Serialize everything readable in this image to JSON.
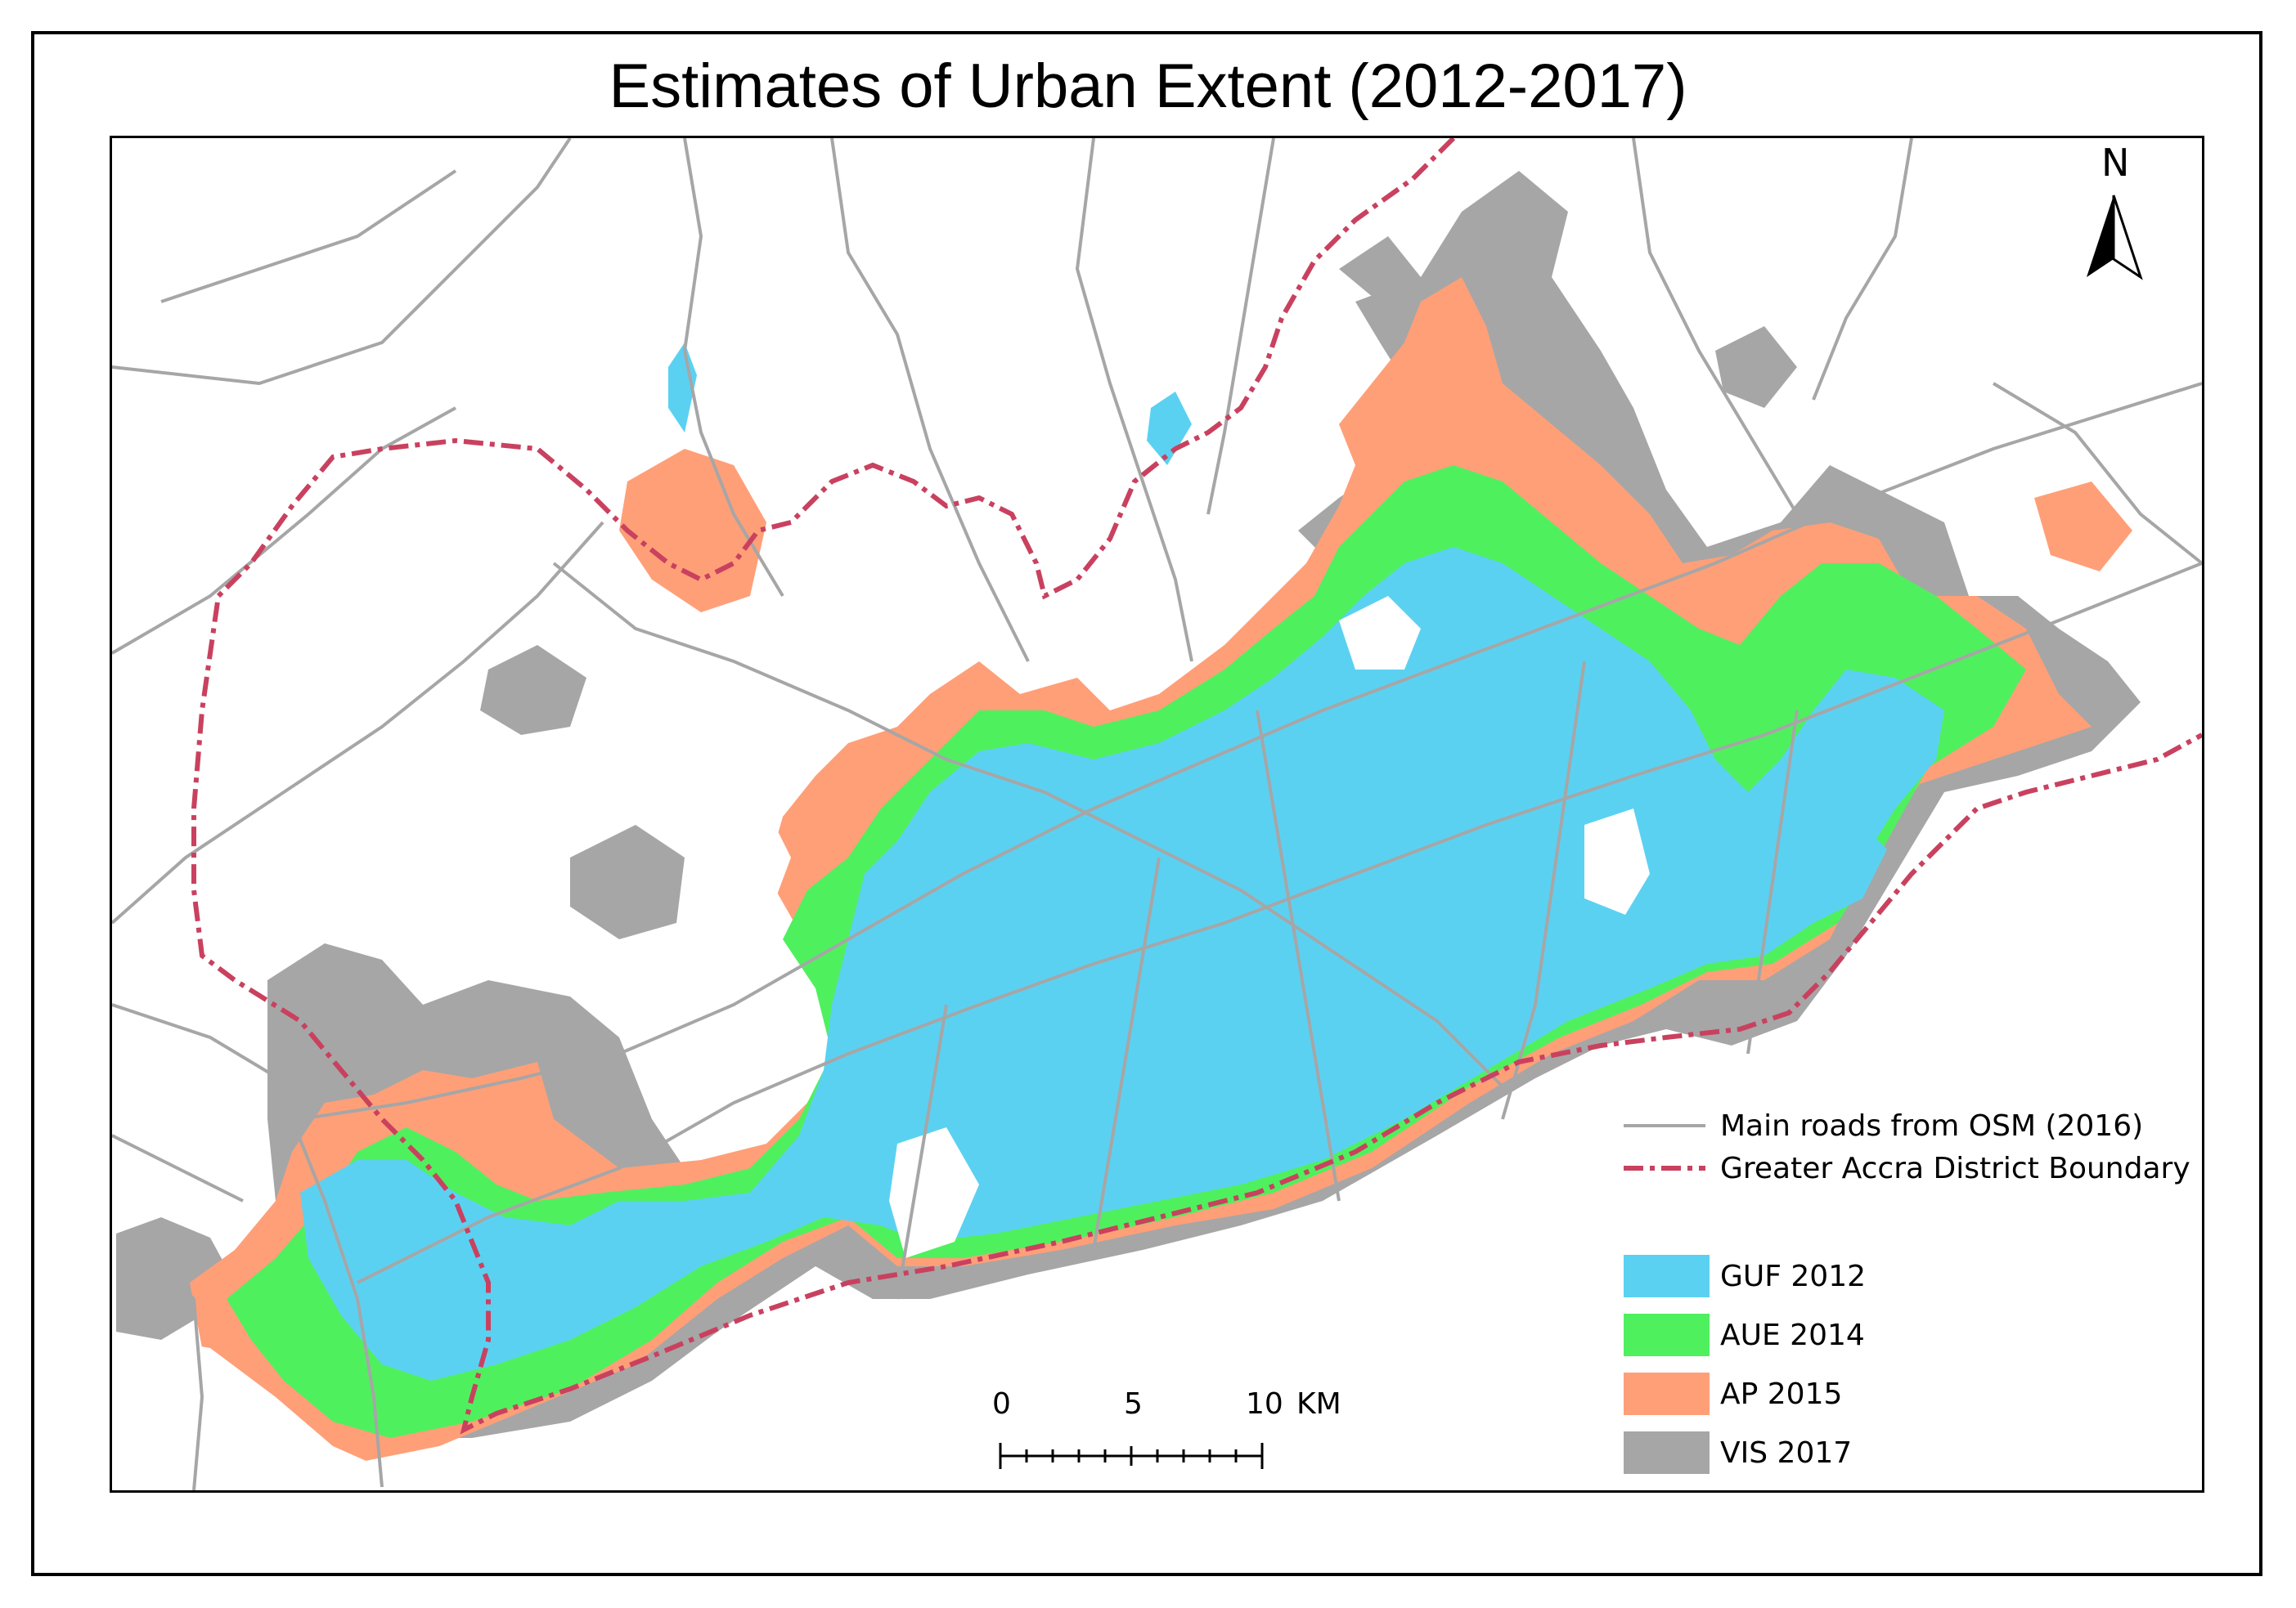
{
  "title": "Estimates of Urban Extent (2012-2017)",
  "north_arrow": {
    "label": "N"
  },
  "legend": {
    "lines": [
      {
        "label": "Main roads from OSM (2016)",
        "color": "#a6a6a6",
        "style": "solid"
      },
      {
        "label": "Greater Accra District Boundary",
        "color": "#c9415f",
        "style": "dash-dot"
      }
    ],
    "classes": [
      {
        "label": "GUF 2012",
        "color": "#5bd1f2"
      },
      {
        "label": "AUE 2014",
        "color": "#4ff05e"
      },
      {
        "label": "AP 2015",
        "color": "#ff9f78"
      },
      {
        "label": "VIS 2017",
        "color": "#a6a6a6"
      }
    ]
  },
  "scale_bar": {
    "ticks": [
      "0",
      "5",
      "10"
    ],
    "unit": "KM"
  }
}
